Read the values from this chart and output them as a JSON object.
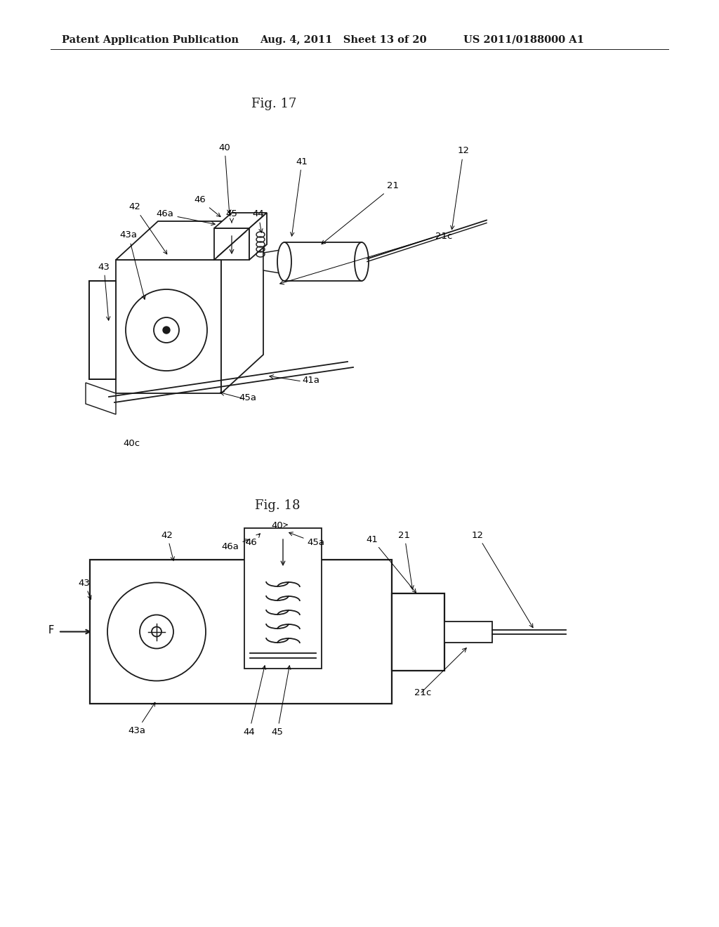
{
  "bg_color": "#ffffff",
  "text_color": "#000000",
  "line_color": "#1a1a1a",
  "header_left": "Patent Application Publication",
  "header_mid": "Aug. 4, 2011   Sheet 13 of 20",
  "header_right": "US 2011/0188000 A1",
  "fig17_title": "Fig. 17",
  "fig18_title": "Fig. 18",
  "font_size_header": 10.5,
  "font_size_fig": 13,
  "font_size_label": 9.5
}
